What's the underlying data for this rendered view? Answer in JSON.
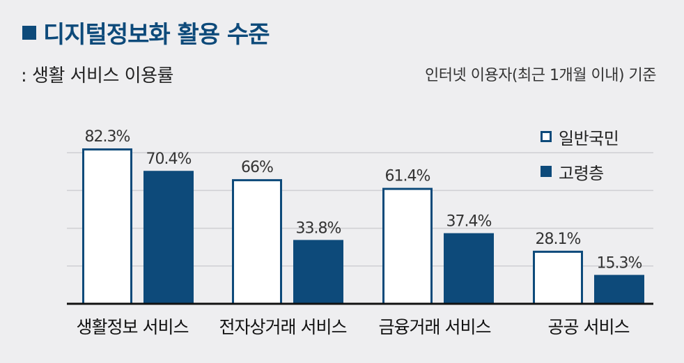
{
  "header": {
    "title": "디지털정보화 활용 수준",
    "subtitle": ": 생활 서비스 이용률",
    "basis_note": "인터넷 이용자(최근 1개월 이내) 기준"
  },
  "colors": {
    "general": "#ffffff",
    "elderly": "#0d4a7a",
    "outline": "#0d4a7a",
    "grid": "#cfcfd3"
  },
  "chart_data": {
    "type": "bar",
    "title": "디지털정보화 활용 수준",
    "subtitle": ": 생활 서비스 이용률",
    "categories": [
      "생활정보 서비스",
      "전자상거래 서비스",
      "금융거래 서비스",
      "공공 서비스"
    ],
    "series": [
      {
        "name": "일반국민",
        "values": [
          82.3,
          66,
          61.4,
          28.1
        ],
        "labels": [
          "82.3%",
          "66%",
          "61.4%",
          "28.1%"
        ]
      },
      {
        "name": "고령층",
        "values": [
          70.4,
          33.8,
          37.4,
          15.3
        ],
        "labels": [
          "70.4%",
          "33.8%",
          "37.4%",
          "15.3%"
        ]
      }
    ],
    "ylim": [
      0,
      100
    ],
    "grid": true,
    "legend": "top-right"
  }
}
